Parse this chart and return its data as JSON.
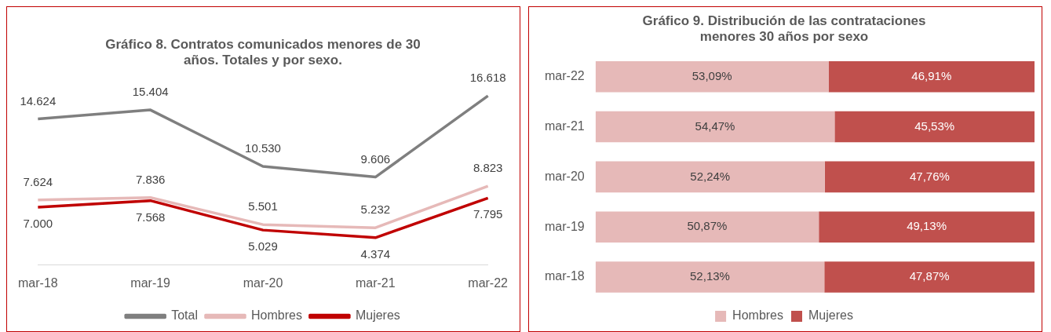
{
  "chart_data": [
    {
      "type": "line",
      "title": "Gráfico 8. Contratos comunicados menores de 30 años. Totales y por sexo.",
      "categories": [
        "mar-18",
        "mar-19",
        "mar-20",
        "mar-21",
        "mar-22"
      ],
      "series": [
        {
          "name": "Total",
          "color": "#7f7f7f",
          "values": [
            14624,
            15404,
            10530,
            9606,
            16618
          ],
          "value_labels": [
            "14.624",
            "15.404",
            "10.530",
            "9.606",
            "16.618"
          ]
        },
        {
          "name": "Hombres",
          "color": "#e6b9b8",
          "values": [
            7624,
            7836,
            5501,
            5232,
            8823
          ],
          "value_labels": [
            "7.624",
            "7.836",
            "5.501",
            "5.232",
            "8.823"
          ]
        },
        {
          "name": "Mujeres",
          "color": "#c00000",
          "values": [
            7000,
            7568,
            5029,
            4374,
            7795
          ],
          "value_labels": [
            "7.000",
            "7.568",
            "5.029",
            "4.374",
            "7.795"
          ]
        }
      ],
      "legend": "bottom",
      "grid": false,
      "tick_labels": "x",
      "marker": "none",
      "line_style": "solid"
    },
    {
      "type": "bar",
      "title": "Gráfico 9. Distribución de las contrataciones menores 30 años por sexo",
      "orientation": "horizontal",
      "stacked": true,
      "categories": [
        "mar-22",
        "mar-21",
        "mar-20",
        "mar-19",
        "mar-18"
      ],
      "xlim": [
        0,
        100
      ],
      "series": [
        {
          "name": "Hombres",
          "color": "#e6b9b8",
          "values": [
            53.09,
            54.47,
            52.24,
            50.87,
            52.13
          ],
          "value_labels": [
            "53,09%",
            "54,47%",
            "52,24%",
            "50,87%",
            "52,13%"
          ]
        },
        {
          "name": "Mujeres",
          "color": "#c0504d",
          "values": [
            46.91,
            45.53,
            47.76,
            49.13,
            47.87
          ],
          "value_labels": [
            "46,91%",
            "45,53%",
            "47,76%",
            "49,13%",
            "47,87%"
          ]
        }
      ],
      "legend": "bottom",
      "grid": false,
      "tick_labels": "y"
    }
  ]
}
